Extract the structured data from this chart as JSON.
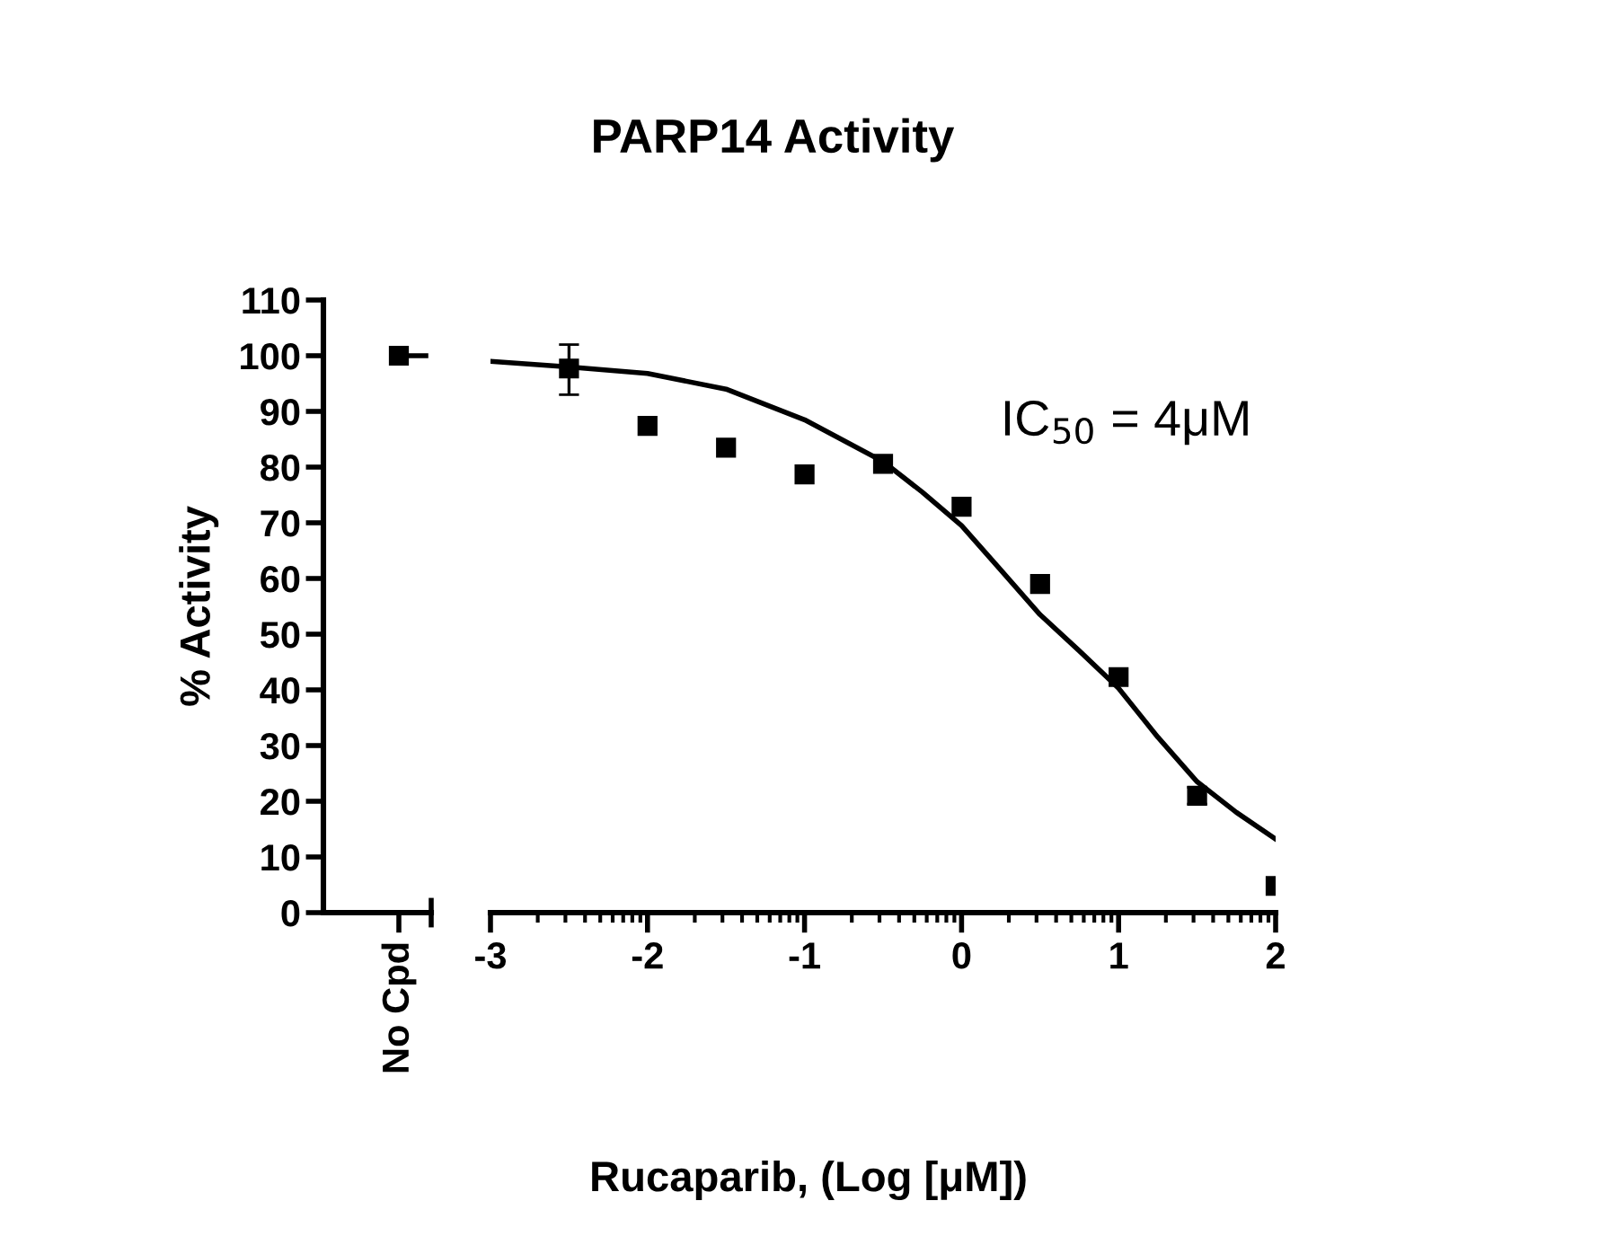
{
  "chart_data": [
    {
      "type": "scatter",
      "ylabel": "% Activity",
      "categories": [
        "No Cpd"
      ],
      "ylim": [
        0,
        110
      ],
      "yticks": [
        0,
        10,
        20,
        30,
        40,
        50,
        60,
        70,
        80,
        90,
        100,
        110
      ],
      "marker": "square",
      "grid": false,
      "series": [
        {
          "color": "#000000",
          "values": [
            100
          ]
        }
      ],
      "ref_lines": [
        {
          "axis": "y",
          "value": 100,
          "color": "#000000"
        }
      ]
    },
    {
      "type": "scatter",
      "title": "PARP14 Activity",
      "xlabel": "Rucaparib, (Log [μM])",
      "xlim": [
        -3,
        2
      ],
      "xticks": [
        -3,
        -2,
        -1,
        0,
        1,
        2
      ],
      "ylim": [
        0,
        110
      ],
      "tick_labels": "x",
      "marker": "square",
      "grid": false,
      "annotations": [
        "IC$_{50}$ = 4μM"
      ],
      "series": [
        {
          "color": "#000000",
          "x": [
            -2.5,
            -2,
            -1.5,
            -1,
            -0.5,
            0,
            0.5,
            1,
            1.5,
            2
          ],
          "values": [
            97.7,
            87.4,
            83.5,
            78.7,
            80.6,
            72.9,
            59,
            42.3,
            21,
            4.8
          ],
          "errors": [
            [
              93,
              102
            ],
            null,
            null,
            null,
            null,
            null,
            null,
            null,
            [
              19.5,
              22.5
            ],
            null
          ]
        },
        {
          "type": "line",
          "color": "#000000",
          "marker": "none",
          "x": [
            -3,
            -2.5,
            -2,
            -1.5,
            -1,
            -0.5,
            -0.25,
            0,
            0.25,
            0.5,
            0.75,
            1,
            1.25,
            1.5,
            1.75,
            2
          ],
          "values": [
            99,
            98,
            96.8,
            94,
            88.5,
            81,
            75.5,
            69.5,
            61.5,
            53.5,
            47,
            40.3,
            31.5,
            23.5,
            18,
            13.2
          ]
        }
      ]
    }
  ]
}
